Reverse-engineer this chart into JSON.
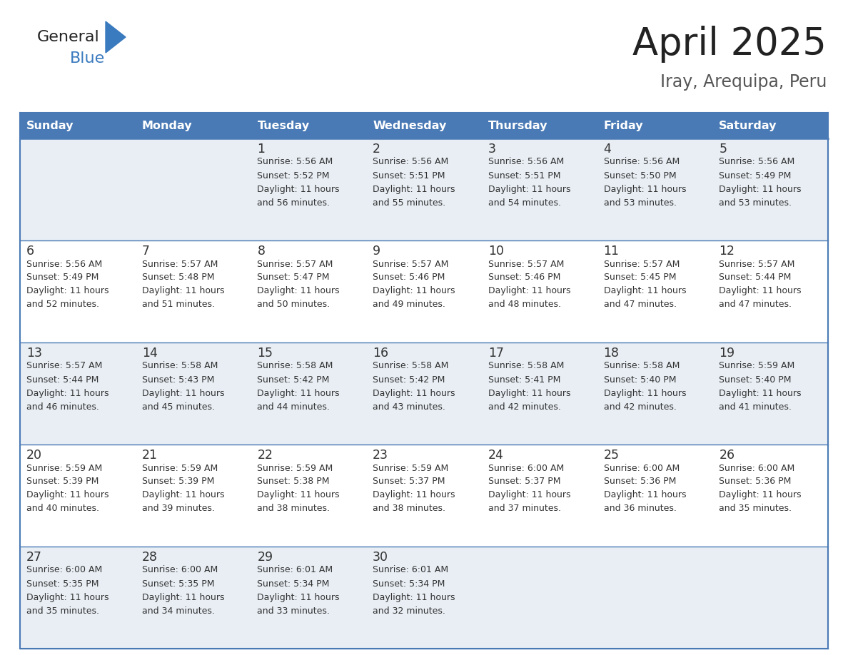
{
  "title": "April 2025",
  "subtitle": "Iray, Arequipa, Peru",
  "header_color": "#4a7ab5",
  "header_text_color": "#ffffff",
  "days_of_week": [
    "Sunday",
    "Monday",
    "Tuesday",
    "Wednesday",
    "Thursday",
    "Friday",
    "Saturday"
  ],
  "row_bg_even": "#e8eef4",
  "row_bg_odd": "#ffffff",
  "border_color": "#4a7ab5",
  "text_color": "#333333",
  "title_color": "#222222",
  "subtitle_color": "#555555",
  "logo_text_color": "#222222",
  "logo_blue_color": "#3a7abf",
  "calendar_data": [
    [
      {
        "day": "",
        "info": ""
      },
      {
        "day": "",
        "info": ""
      },
      {
        "day": "1",
        "info": "Sunrise: 5:56 AM\nSunset: 5:52 PM\nDaylight: 11 hours\nand 56 minutes."
      },
      {
        "day": "2",
        "info": "Sunrise: 5:56 AM\nSunset: 5:51 PM\nDaylight: 11 hours\nand 55 minutes."
      },
      {
        "day": "3",
        "info": "Sunrise: 5:56 AM\nSunset: 5:51 PM\nDaylight: 11 hours\nand 54 minutes."
      },
      {
        "day": "4",
        "info": "Sunrise: 5:56 AM\nSunset: 5:50 PM\nDaylight: 11 hours\nand 53 minutes."
      },
      {
        "day": "5",
        "info": "Sunrise: 5:56 AM\nSunset: 5:49 PM\nDaylight: 11 hours\nand 53 minutes."
      }
    ],
    [
      {
        "day": "6",
        "info": "Sunrise: 5:56 AM\nSunset: 5:49 PM\nDaylight: 11 hours\nand 52 minutes."
      },
      {
        "day": "7",
        "info": "Sunrise: 5:57 AM\nSunset: 5:48 PM\nDaylight: 11 hours\nand 51 minutes."
      },
      {
        "day": "8",
        "info": "Sunrise: 5:57 AM\nSunset: 5:47 PM\nDaylight: 11 hours\nand 50 minutes."
      },
      {
        "day": "9",
        "info": "Sunrise: 5:57 AM\nSunset: 5:46 PM\nDaylight: 11 hours\nand 49 minutes."
      },
      {
        "day": "10",
        "info": "Sunrise: 5:57 AM\nSunset: 5:46 PM\nDaylight: 11 hours\nand 48 minutes."
      },
      {
        "day": "11",
        "info": "Sunrise: 5:57 AM\nSunset: 5:45 PM\nDaylight: 11 hours\nand 47 minutes."
      },
      {
        "day": "12",
        "info": "Sunrise: 5:57 AM\nSunset: 5:44 PM\nDaylight: 11 hours\nand 47 minutes."
      }
    ],
    [
      {
        "day": "13",
        "info": "Sunrise: 5:57 AM\nSunset: 5:44 PM\nDaylight: 11 hours\nand 46 minutes."
      },
      {
        "day": "14",
        "info": "Sunrise: 5:58 AM\nSunset: 5:43 PM\nDaylight: 11 hours\nand 45 minutes."
      },
      {
        "day": "15",
        "info": "Sunrise: 5:58 AM\nSunset: 5:42 PM\nDaylight: 11 hours\nand 44 minutes."
      },
      {
        "day": "16",
        "info": "Sunrise: 5:58 AM\nSunset: 5:42 PM\nDaylight: 11 hours\nand 43 minutes."
      },
      {
        "day": "17",
        "info": "Sunrise: 5:58 AM\nSunset: 5:41 PM\nDaylight: 11 hours\nand 42 minutes."
      },
      {
        "day": "18",
        "info": "Sunrise: 5:58 AM\nSunset: 5:40 PM\nDaylight: 11 hours\nand 42 minutes."
      },
      {
        "day": "19",
        "info": "Sunrise: 5:59 AM\nSunset: 5:40 PM\nDaylight: 11 hours\nand 41 minutes."
      }
    ],
    [
      {
        "day": "20",
        "info": "Sunrise: 5:59 AM\nSunset: 5:39 PM\nDaylight: 11 hours\nand 40 minutes."
      },
      {
        "day": "21",
        "info": "Sunrise: 5:59 AM\nSunset: 5:39 PM\nDaylight: 11 hours\nand 39 minutes."
      },
      {
        "day": "22",
        "info": "Sunrise: 5:59 AM\nSunset: 5:38 PM\nDaylight: 11 hours\nand 38 minutes."
      },
      {
        "day": "23",
        "info": "Sunrise: 5:59 AM\nSunset: 5:37 PM\nDaylight: 11 hours\nand 38 minutes."
      },
      {
        "day": "24",
        "info": "Sunrise: 6:00 AM\nSunset: 5:37 PM\nDaylight: 11 hours\nand 37 minutes."
      },
      {
        "day": "25",
        "info": "Sunrise: 6:00 AM\nSunset: 5:36 PM\nDaylight: 11 hours\nand 36 minutes."
      },
      {
        "day": "26",
        "info": "Sunrise: 6:00 AM\nSunset: 5:36 PM\nDaylight: 11 hours\nand 35 minutes."
      }
    ],
    [
      {
        "day": "27",
        "info": "Sunrise: 6:00 AM\nSunset: 5:35 PM\nDaylight: 11 hours\nand 35 minutes."
      },
      {
        "day": "28",
        "info": "Sunrise: 6:00 AM\nSunset: 5:35 PM\nDaylight: 11 hours\nand 34 minutes."
      },
      {
        "day": "29",
        "info": "Sunrise: 6:01 AM\nSunset: 5:34 PM\nDaylight: 11 hours\nand 33 minutes."
      },
      {
        "day": "30",
        "info": "Sunrise: 6:01 AM\nSunset: 5:34 PM\nDaylight: 11 hours\nand 32 minutes."
      },
      {
        "day": "",
        "info": ""
      },
      {
        "day": "",
        "info": ""
      },
      {
        "day": "",
        "info": ""
      }
    ]
  ]
}
